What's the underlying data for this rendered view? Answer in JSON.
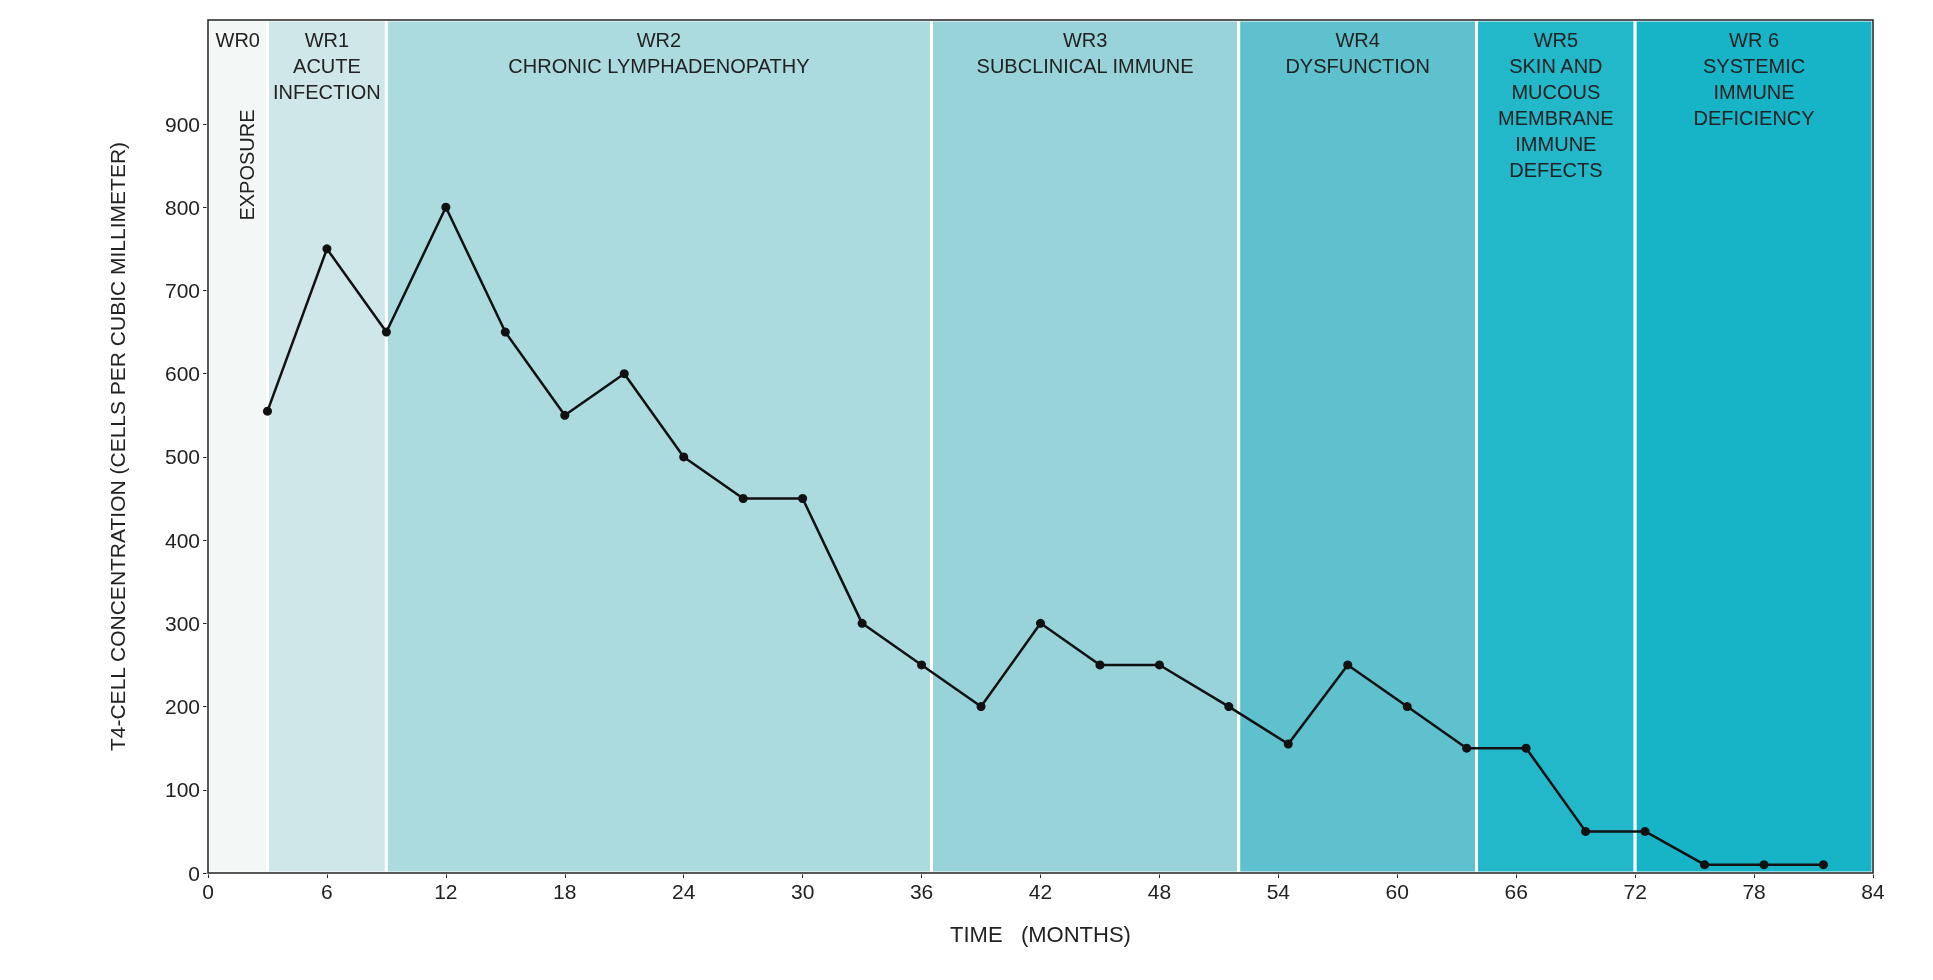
{
  "chart_data": {
    "type": "line",
    "xlabel": "TIME   (MONTHS)",
    "ylabel": "T4-CELL CONCENTRATION (CELLS PER CUBIC MILLIMETER)",
    "x": [
      3,
      6,
      9,
      12,
      15,
      18,
      21,
      24,
      27,
      30,
      33,
      36,
      39,
      42,
      45,
      48,
      51.5,
      54.5,
      57.5,
      60.5,
      63.5,
      66.5,
      69.5,
      72.5,
      75.5,
      78.5,
      81.5
    ],
    "series": [
      {
        "color": "#111111",
        "values": [
          555,
          750,
          650,
          800,
          650,
          550,
          600,
          500,
          450,
          450,
          300,
          250,
          200,
          300,
          250,
          250,
          200,
          155,
          250,
          200,
          150,
          150,
          50,
          50,
          10,
          10,
          10
        ]
      }
    ],
    "xlim": [
      0,
      84
    ],
    "xticks": [
      0,
      6,
      12,
      18,
      24,
      30,
      36,
      42,
      48,
      54,
      60,
      66,
      72,
      78,
      84
    ],
    "ylim": [
      0,
      1025
    ],
    "yticks": [
      0,
      100,
      200,
      300,
      400,
      500,
      600,
      700,
      800,
      900
    ],
    "marker": "circle",
    "line_style": "solid",
    "bands": [
      {
        "axis": "x",
        "from": 0,
        "to": 3,
        "label": "WR0",
        "color": "#f3f7f5"
      },
      {
        "axis": "x",
        "from": 3,
        "to": 9,
        "label": "WR1\nACUTE\nINFECTION",
        "color": "#cfe7e8"
      },
      {
        "axis": "x",
        "from": 9,
        "to": 36.5,
        "label": "WR2\nCHRONIC LYMPHADENOPATHY",
        "color": "#abdbdf"
      },
      {
        "axis": "x",
        "from": 36.5,
        "to": 52,
        "label": "WR3\nSUBCLINICAL IMMUNE",
        "color": "#97d3d9"
      },
      {
        "axis": "x",
        "from": 52,
        "to": 64,
        "label": "WR4\nDYSFUNCTION",
        "color": "#5ec1cd"
      },
      {
        "axis": "x",
        "from": 64,
        "to": 72,
        "label": "WR5\nSKIN AND\nMUCOUS\nMEMBRANE\nIMMUNE\nDEFECTS",
        "color": "#22b7c9"
      },
      {
        "axis": "x",
        "from": 72,
        "to": 84,
        "label": "WR 6\nSYSTEMIC\nIMMUNE\nDEFICIENCY",
        "color": "#17b3c7"
      }
    ],
    "annotations": [
      "EXPOSURE"
    ]
  }
}
